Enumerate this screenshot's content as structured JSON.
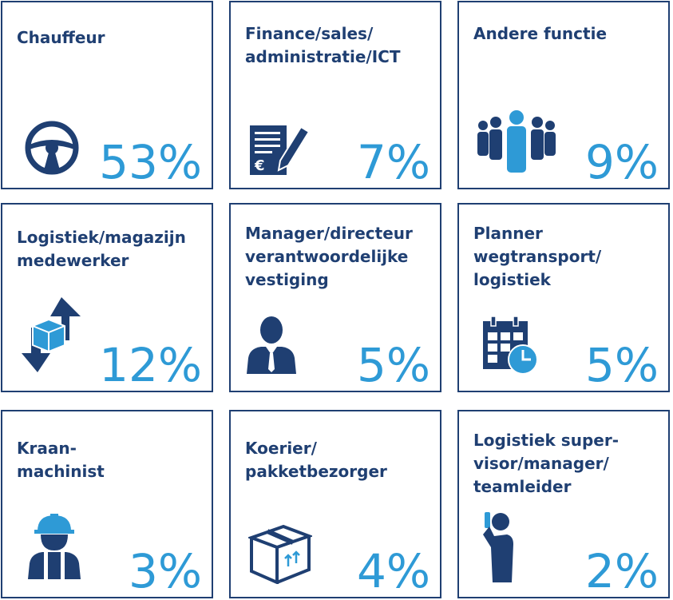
{
  "colors": {
    "label": "#1f3f72",
    "value": "#2e9ad6",
    "border": "#1f3f72"
  },
  "chart_data": {
    "type": "table",
    "categories": [
      "Chauffeur",
      "Finance/sales/\nadministratie/ICT",
      "Andere functie",
      "Logistiek/magazijn\nmedewerker",
      "Manager/directeur\nverantwoordelijke\nvestiging",
      "Planner\nwegtransport/\nlogistiek",
      "Kraan-\nmachinist",
      "Koerier/\npakketbezorger",
      "Logistiek super-\nvisor/manager/\nteamleider"
    ],
    "values": [
      53,
      7,
      9,
      12,
      5,
      5,
      3,
      4,
      2
    ],
    "labels": [
      "53%",
      "7%",
      "9%",
      "12%",
      "5%",
      "5%",
      "3%",
      "4%",
      "2%"
    ],
    "icons": [
      "steering-wheel-icon",
      "invoice-pen-icon",
      "group-people-icon",
      "box-arrows-icon",
      "businessman-icon",
      "calendar-clock-icon",
      "construction-worker-icon",
      "package-box-icon",
      "supervisor-phone-icon"
    ]
  }
}
